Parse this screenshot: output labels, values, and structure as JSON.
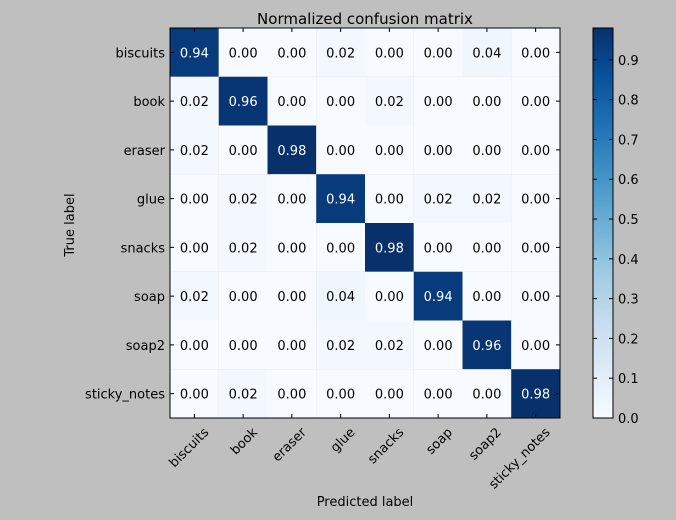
{
  "chart_data": {
    "type": "heatmap",
    "title": "Normalized confusion matrix",
    "xlabel": "Predicted label",
    "ylabel": "True label",
    "row_labels": [
      "biscuits",
      "book",
      "eraser",
      "glue",
      "snacks",
      "soap",
      "soap2",
      "sticky_notes"
    ],
    "col_labels": [
      "biscuits",
      "book",
      "eraser",
      "glue",
      "snacks",
      "soap",
      "soap2",
      "sticky_notes"
    ],
    "values": [
      [
        0.94,
        0.0,
        0.0,
        0.02,
        0.0,
        0.0,
        0.04,
        0.0
      ],
      [
        0.02,
        0.96,
        0.0,
        0.0,
        0.02,
        0.0,
        0.0,
        0.0
      ],
      [
        0.02,
        0.0,
        0.98,
        0.0,
        0.0,
        0.0,
        0.0,
        0.0
      ],
      [
        0.0,
        0.02,
        0.0,
        0.94,
        0.0,
        0.02,
        0.02,
        0.0
      ],
      [
        0.0,
        0.02,
        0.0,
        0.0,
        0.98,
        0.0,
        0.0,
        0.0
      ],
      [
        0.02,
        0.0,
        0.0,
        0.04,
        0.0,
        0.94,
        0.0,
        0.0
      ],
      [
        0.0,
        0.0,
        0.0,
        0.02,
        0.02,
        0.0,
        0.96,
        0.0
      ],
      [
        0.0,
        0.02,
        0.0,
        0.0,
        0.0,
        0.0,
        0.0,
        0.98
      ]
    ],
    "value_format": "0.00",
    "colormap": "Blues",
    "colormap_stops": [
      "#f7fbff",
      "#deebf7",
      "#c6dbef",
      "#9ecae1",
      "#6baed6",
      "#4292c6",
      "#2171b5",
      "#08519c",
      "#08306b"
    ],
    "color_range": [
      0,
      0.98
    ],
    "colorbar_ticks": [
      "0.0",
      "0.1",
      "0.2",
      "0.3",
      "0.4",
      "0.5",
      "0.6",
      "0.7",
      "0.8",
      "0.9"
    ],
    "colorbar_tick_values": [
      0.0,
      0.1,
      0.2,
      0.3,
      0.4,
      0.5,
      0.6,
      0.7,
      0.8,
      0.9
    ],
    "text_threshold": 0.49,
    "grid": false
  }
}
